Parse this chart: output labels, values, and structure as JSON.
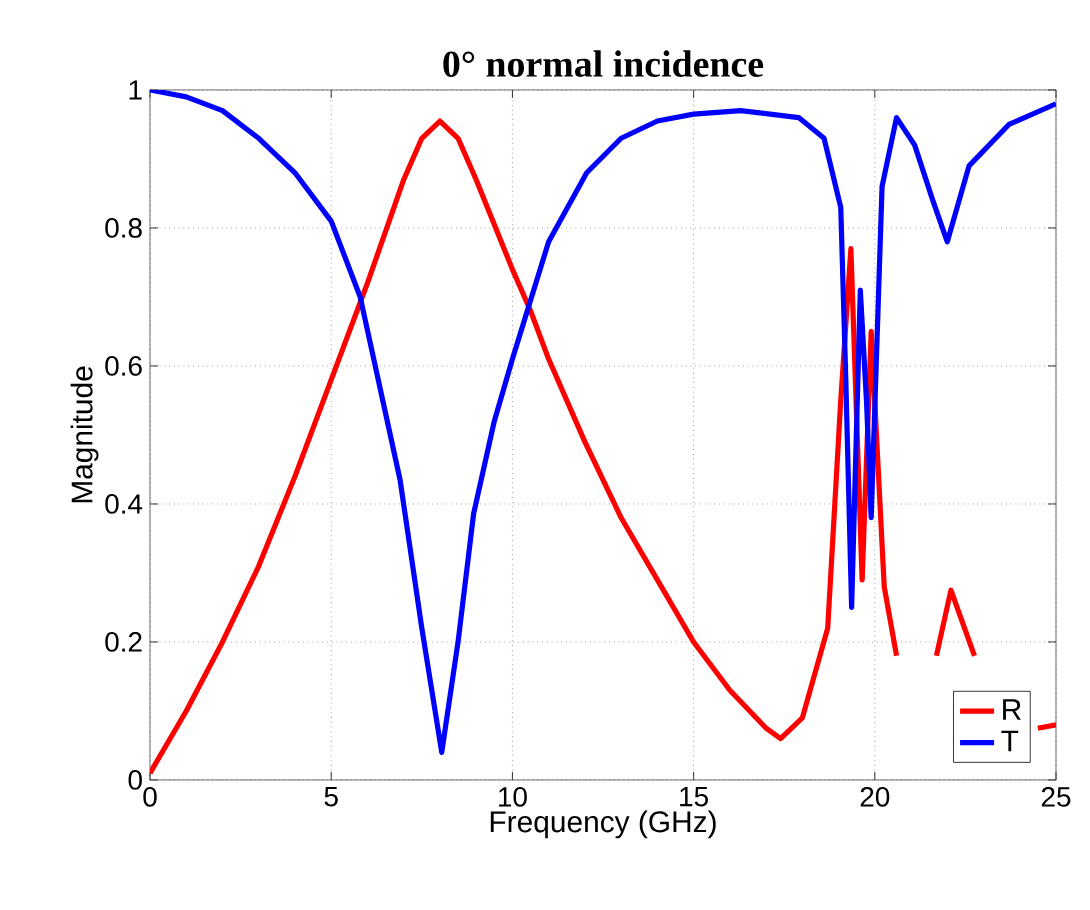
{
  "chart_data": {
    "type": "line",
    "title": "0° normal incidence",
    "xlabel": "Frequency (GHz)",
    "ylabel": "Magnitude",
    "xlim": [
      0,
      25
    ],
    "ylim": [
      0,
      1
    ],
    "xticks": [
      0,
      5,
      10,
      15,
      20,
      25
    ],
    "yticks": [
      0,
      0.2,
      0.4,
      0.6,
      0.8,
      1
    ],
    "grid": true,
    "legend": "bottom right",
    "line_style": "solid",
    "marker": "none",
    "series": [
      {
        "name": "R",
        "color": "#ff0000",
        "x": [
          0,
          1,
          2,
          3,
          4,
          5,
          6,
          7,
          7.5,
          8,
          8.5,
          9,
          10,
          10.5,
          11,
          12,
          13,
          14,
          15,
          16,
          17,
          17.4,
          18,
          18.7,
          19.06,
          19.34,
          19.65,
          19.9,
          20.26,
          20.6,
          21.0,
          21.7,
          22.1,
          22.75,
          23.5,
          24.5,
          25
        ],
        "values": [
          0.01,
          0.1,
          0.2,
          0.31,
          0.44,
          0.58,
          0.72,
          0.87,
          0.93,
          0.955,
          0.93,
          0.87,
          0.74,
          0.68,
          0.61,
          0.49,
          0.38,
          0.29,
          0.2,
          0.13,
          0.075,
          0.06,
          0.09,
          0.22,
          0.55,
          0.77,
          0.29,
          0.65,
          0.28,
          0.18,
          null,
          0.18,
          0.275,
          0.18,
          null,
          0.075,
          0.08
        ]
      },
      {
        "name": "T",
        "color": "#0000ff",
        "x": [
          0,
          1,
          2,
          3,
          4,
          5,
          5.8,
          6.9,
          7.5,
          8.05,
          8.5,
          8.93,
          9.5,
          10,
          11,
          12.05,
          13,
          14,
          15,
          16.3,
          17.9,
          18.6,
          19.06,
          19.2,
          19.36,
          19.6,
          19.77,
          19.9,
          20.2,
          20.6,
          21.1,
          21.6,
          22.0,
          22.6,
          23.7,
          25
        ],
        "values": [
          1,
          0.99,
          0.97,
          0.93,
          0.88,
          0.81,
          0.7,
          0.435,
          0.22,
          0.04,
          0.2,
          0.386,
          0.52,
          0.61,
          0.78,
          0.88,
          0.93,
          0.955,
          0.965,
          0.97,
          0.96,
          0.93,
          0.83,
          0.58,
          0.25,
          0.71,
          0.55,
          0.38,
          0.86,
          0.96,
          0.92,
          0.84,
          0.78,
          0.89,
          0.95,
          0.98
        ]
      }
    ]
  }
}
